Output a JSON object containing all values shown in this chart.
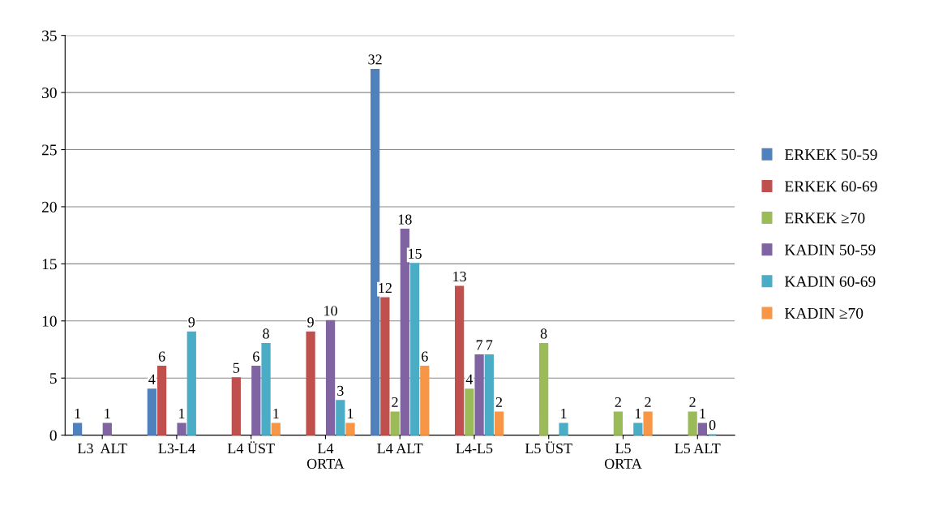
{
  "chart_data": {
    "type": "bar",
    "categories": [
      "L3  ALT",
      "L3-L4",
      "L4 ÜST",
      "L4\nORTA",
      "L4 ALT",
      "L4-L5",
      "L5 ÜST",
      "L5\nORTA",
      "L5 ALT"
    ],
    "series": [
      {
        "name": "ERKEK 50-59",
        "color": "#4f81bd",
        "values": [
          1,
          4,
          null,
          null,
          32,
          null,
          null,
          null,
          null
        ]
      },
      {
        "name": "ERKEK 60-69",
        "color": "#c0504d",
        "values": [
          null,
          6,
          5,
          9,
          12,
          13,
          null,
          null,
          null
        ]
      },
      {
        "name": "ERKEK ≥70",
        "color": "#9bbb59",
        "values": [
          null,
          null,
          null,
          null,
          2,
          4,
          8,
          2,
          2
        ]
      },
      {
        "name": "KADIN 50-59",
        "color": "#8064a2",
        "values": [
          1,
          1,
          6,
          10,
          18,
          7,
          null,
          null,
          1
        ]
      },
      {
        "name": "KADIN 60-69",
        "color": "#4bacc6",
        "values": [
          null,
          9,
          8,
          3,
          15,
          7,
          1,
          1,
          0
        ]
      },
      {
        "name": "KADIN ≥70",
        "color": "#f79646",
        "values": [
          null,
          null,
          1,
          1,
          6,
          2,
          null,
          2,
          null
        ]
      }
    ],
    "ylim": [
      0,
      35
    ],
    "yticks": [
      0,
      5,
      10,
      15,
      20,
      25,
      30,
      35
    ],
    "grid": "y",
    "legend": "right",
    "data_labels": true
  }
}
